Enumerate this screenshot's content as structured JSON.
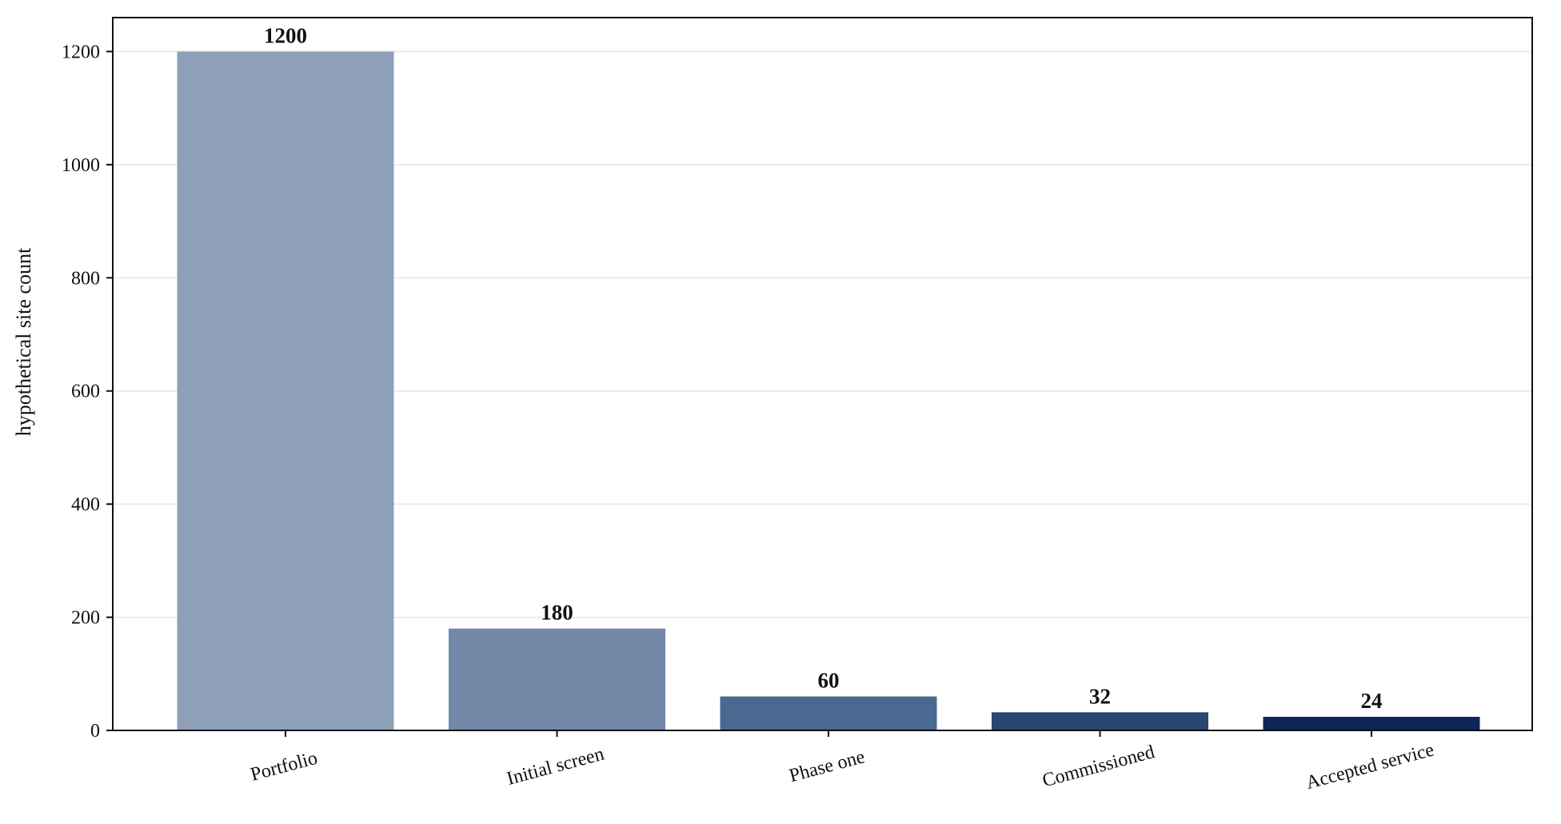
{
  "chart_data": {
    "type": "bar",
    "categories": [
      "Portfolio",
      "Initial screen",
      "Phase one",
      "Commissioned",
      "Accepted service"
    ],
    "values": [
      1200,
      180,
      60,
      32,
      24
    ],
    "data_labels": [
      "1200",
      "180",
      "60",
      "32",
      "24"
    ],
    "bar_colors": [
      "#8da0b8",
      "#7288a6",
      "#4a6890",
      "#284670",
      "#0d2558"
    ],
    "title": "",
    "xlabel": "",
    "ylabel": "hypothetical site count",
    "ylim": [
      0,
      1260
    ],
    "yticks": [
      0,
      200,
      400,
      600,
      800,
      1000,
      1200
    ],
    "grid": "horizontal, light gray",
    "legend": "none",
    "xtick_rotation_deg": -15
  }
}
